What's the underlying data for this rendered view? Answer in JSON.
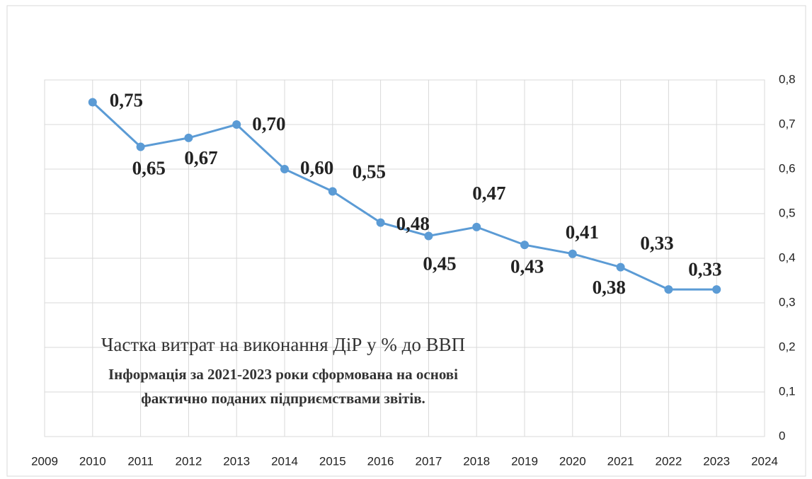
{
  "chart_data": {
    "type": "line",
    "annotations": [
      "Частка витрат на виконання ДіР у % до ВВП",
      "Інформація за 2021-2023 роки сформована на основі",
      "фактично поданих підприємствами звітів."
    ],
    "x": [
      2010,
      2011,
      2012,
      2013,
      2014,
      2015,
      2016,
      2017,
      2018,
      2019,
      2020,
      2021,
      2022,
      2023
    ],
    "series": [
      {
        "name": "Частка витрат на виконання ДіР у % до ВВП",
        "color": "#5b9bd5",
        "values": [
          0.75,
          0.65,
          0.67,
          0.7,
          0.6,
          0.55,
          0.48,
          0.45,
          0.47,
          0.43,
          0.41,
          0.38,
          0.33,
          0.33
        ],
        "value_labels": [
          "0,75",
          "0,65",
          "0,67",
          "0,70",
          "0,60",
          "0,55",
          "0,48",
          "0,45",
          "0,47",
          "0,43",
          "0,41",
          "0,38",
          "0,33",
          "0,33"
        ]
      }
    ],
    "xlim": [
      2009,
      2024
    ],
    "xticks": [
      2009,
      2010,
      2011,
      2012,
      2013,
      2014,
      2015,
      2016,
      2017,
      2018,
      2019,
      2020,
      2021,
      2022,
      2023,
      2024
    ],
    "ylim": [
      0,
      0.8
    ],
    "yticks": [
      0,
      {
        "value": 0.1,
        "label": "0,1"
      },
      {
        "value": 0.2,
        "label": "0,2"
      },
      {
        "value": 0.3,
        "label": "0,3"
      },
      {
        "value": 0.4,
        "label": "0,4"
      },
      {
        "value": 0.5,
        "label": "0,5"
      },
      {
        "value": 0.6,
        "label": "0,6"
      },
      {
        "value": 0.7,
        "label": "0,7"
      },
      {
        "value": 0.8,
        "label": "0,8"
      }
    ],
    "grid": true
  }
}
